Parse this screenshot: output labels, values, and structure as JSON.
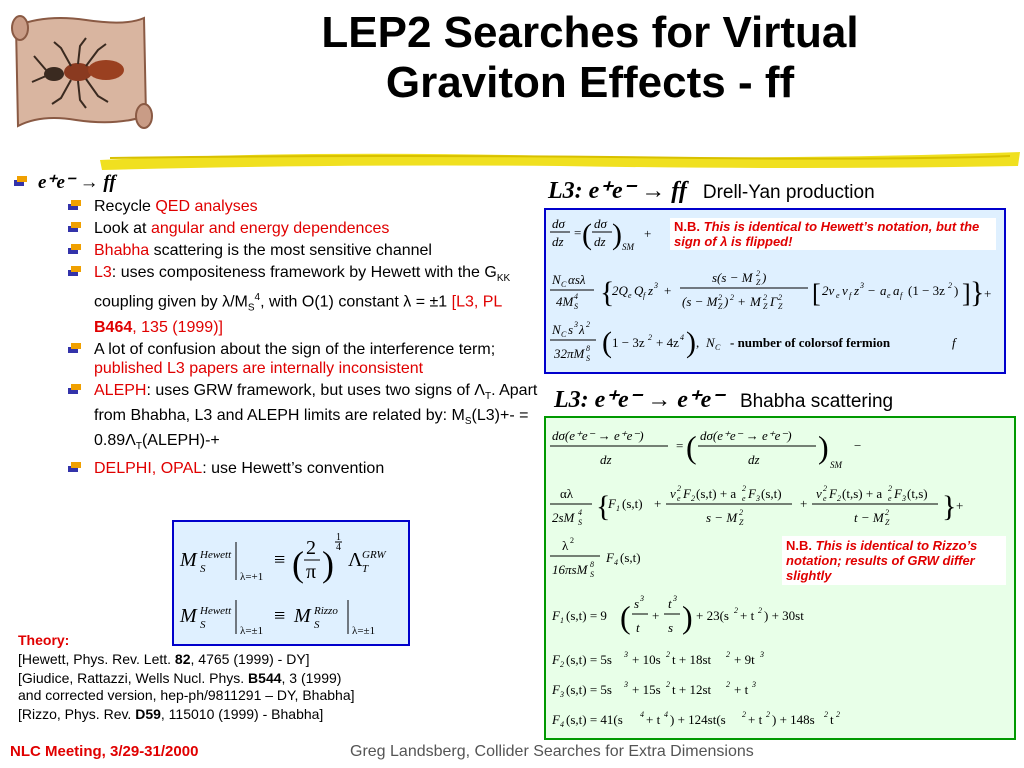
{
  "title": {
    "line1": "LEP2 Searches for Virtual",
    "line2": "Graviton Effects - ff"
  },
  "bullets": {
    "main": "e⁺e⁻ → ff",
    "items": [
      {
        "pre": "Recycle ",
        "red": "QED analyses",
        "post": ""
      },
      {
        "pre": "Look at ",
        "red": "angular and energy dependences",
        "post": ""
      },
      {
        "pre": "",
        "red": "Bhabha",
        "post": " scattering is the most sensitive channel"
      },
      {
        "red": "L3",
        "post": ": uses compositeness framework by Hewett with the G",
        "sub": "KK",
        "post2": " coupling given by λ/M",
        "sub2": "S",
        "sup": "4",
        "post3": ", with O(1) constant λ = ±1 ",
        "ref_red1": "[L3, PL ",
        "ref_bold": "B464",
        "ref_red2": ", 135 (1999)]"
      },
      {
        "pre": "A lot of confusion about the sign of the interference term; ",
        "red": "published L3 papers are internally inconsistent",
        "post": ""
      },
      {
        "red": "ALEPH",
        "post": ": uses GRW framework, but uses two signs of Λ",
        "sub": "T",
        "post2": ". Apart from Bhabha, L3 and ALEPH limits are related by: M",
        "sub2": "S",
        "post3": "(L3)+- = 0.89Λ",
        "sub3": "T",
        "post4": "(ALEPH)-+"
      },
      {
        "red": "DELPHI, OPAL",
        "post": ": use Hewett’s convention"
      }
    ]
  },
  "right": {
    "l3_ff_head": "L3: e⁺e⁻ → ff",
    "l3_ff_sub": "Drell-Yan production",
    "l3_ff_nb_label": "N.B.",
    "l3_ff_nb_text": "This is identical to Hewett’s notation, but the sign of λ is flipped!",
    "nc_desc": "- number of colorsof fermion",
    "l3_ee_head": "L3: e⁺e⁻ → e⁺e⁻",
    "l3_ee_sub": "Bhabha scattering",
    "l3_ee_nb_label": "N.B.",
    "l3_ee_nb_text": "This is identical to Rizzo’s notation; results of GRW differ slightly"
  },
  "refs": {
    "theory": "Theory:",
    "r1a": "[Hewett, Phys. Rev. Lett. ",
    "r1b": "82",
    "r1c": ", 4765 (1999) - DY]",
    "r2a": "[Giudice, Rattazzi, Wells Nucl. Phys. ",
    "r2b": "B544",
    "r2c": ", 3 (1999)",
    "r2d": "and corrected version, hep-ph/9811291 – DY, Bhabha]",
    "r3a": "[Rizzo, Phys. Rev. ",
    "r3b": "D59",
    "r3c": ", 115010 (1999) - Bhabha]"
  },
  "footer": {
    "left": "NLC Meeting, 3/29-31/2000",
    "right": "Greg Landsberg, Collider Searches for Extra Dimensions"
  },
  "colors": {
    "accent_red": "#e00000",
    "box_blue": "#0000cc",
    "box_green": "#009900",
    "brush_yellow": "#f0e020"
  }
}
